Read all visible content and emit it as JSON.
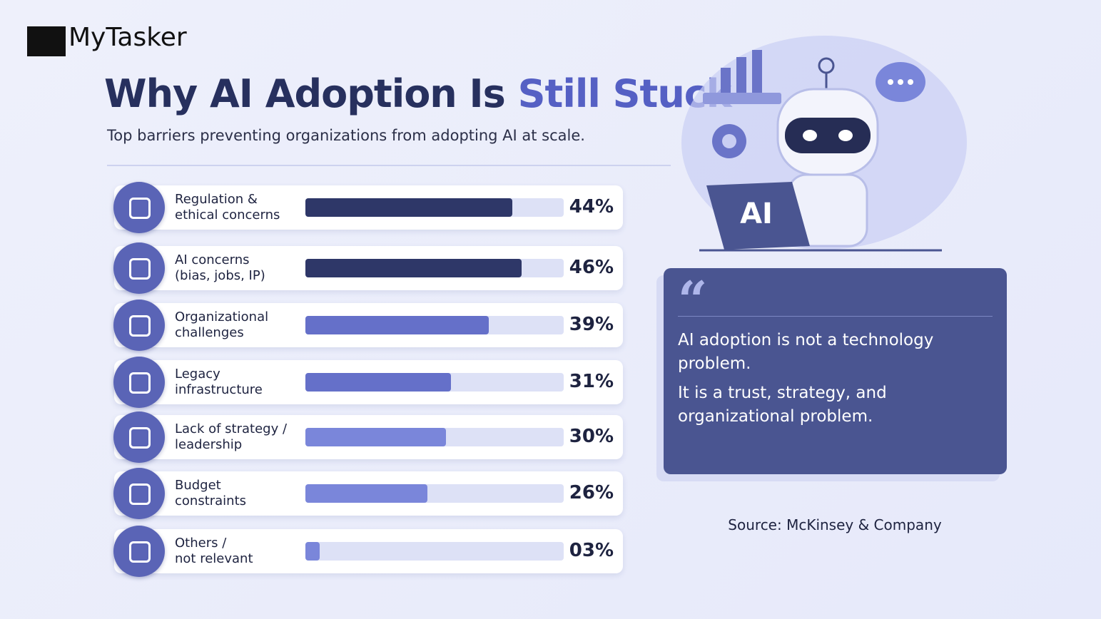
{
  "brand": "MyTasker",
  "chart_data": {
    "type": "bar",
    "title": {
      "main": "Why AI Adoption Is",
      "highlight": "Still Stuck"
    },
    "subtitle": "Top barriers preventing organizations from adopting AI at scale.",
    "categories": [
      "Regulation &\nethical concerns",
      "AI concerns\n(bias, jobs, IP)",
      "Organizational\nchallenges",
      "Legacy\ninfrastructure",
      "Lack of strategy /\nleadership",
      "Budget\nconstraints",
      "Others /\nnot relevant"
    ],
    "values": [
      44,
      46,
      39,
      31,
      30,
      26,
      3
    ],
    "value_labels": [
      "44%",
      "46%",
      "39%",
      "31%",
      "30%",
      "26%",
      "03%"
    ],
    "colors": [
      "#2e3768",
      "#2e3768",
      "#6570c9",
      "#6570c9",
      "#7a86da",
      "#7a86da",
      "#7a86da"
    ],
    "xlim": [
      0,
      55
    ]
  },
  "illustration_label": "AI",
  "quote": {
    "mark": "“",
    "lines": [
      "AI adoption is not a technology problem.",
      "It is a trust, strategy, and organizational problem."
    ]
  },
  "source": "Source: McKinsey & Company"
}
